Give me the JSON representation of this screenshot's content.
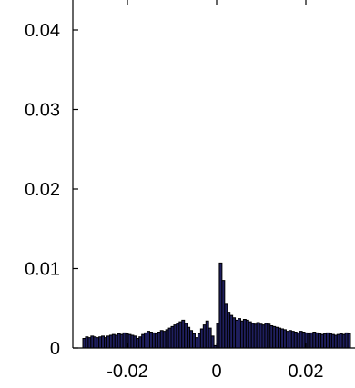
{
  "chart_data": {
    "type": "bar",
    "xlim": [
      -0.03,
      0.03
    ],
    "ylim": [
      0,
      0.042
    ],
    "xticks": [
      -0.02,
      0,
      0.02
    ],
    "xtick_labels": [
      "-0.02",
      "0",
      "0.02"
    ],
    "yticks": [
      0,
      0.01,
      0.02,
      0.03,
      0.04
    ],
    "ytick_labels": [
      "0",
      "0.01",
      "0.02",
      "0.03",
      "0.04"
    ],
    "bar_color": "#1f1f5e",
    "bin_width": 0.0006,
    "x": [
      -0.0297,
      -0.0291,
      -0.0285,
      -0.0279,
      -0.0273,
      -0.0267,
      -0.0261,
      -0.0255,
      -0.0249,
      -0.0243,
      -0.0237,
      -0.0231,
      -0.0225,
      -0.0219,
      -0.0213,
      -0.0207,
      -0.0201,
      -0.0195,
      -0.0189,
      -0.0183,
      -0.0177,
      -0.0171,
      -0.0165,
      -0.0159,
      -0.0153,
      -0.0147,
      -0.0141,
      -0.0135,
      -0.0129,
      -0.0123,
      -0.0117,
      -0.0111,
      -0.0105,
      -0.0099,
      -0.0093,
      -0.0087,
      -0.0081,
      -0.0075,
      -0.0069,
      -0.0063,
      -0.0057,
      -0.0051,
      -0.0045,
      -0.0039,
      -0.0033,
      -0.0027,
      -0.0021,
      -0.0015,
      -0.0009,
      -0.0003,
      0.0003,
      0.0009,
      0.0015,
      0.0021,
      0.0027,
      0.0033,
      0.0039,
      0.0045,
      0.0051,
      0.0057,
      0.0063,
      0.0069,
      0.0075,
      0.0081,
      0.0087,
      0.0093,
      0.0099,
      0.0105,
      0.0111,
      0.0117,
      0.0123,
      0.0129,
      0.0135,
      0.0141,
      0.0147,
      0.0153,
      0.0159,
      0.0165,
      0.0171,
      0.0177,
      0.0183,
      0.0189,
      0.0195,
      0.0201,
      0.0207,
      0.0213,
      0.0219,
      0.0225,
      0.0231,
      0.0237,
      0.0243,
      0.0249,
      0.0255,
      0.0261,
      0.0267,
      0.0273,
      0.0279,
      0.0285,
      0.0291,
      0.0297
    ],
    "values": [
      0.0012,
      0.0014,
      0.0013,
      0.0015,
      0.0014,
      0.0013,
      0.0014,
      0.0015,
      0.0013,
      0.0015,
      0.0016,
      0.0017,
      0.0016,
      0.0018,
      0.0017,
      0.0019,
      0.0018,
      0.0017,
      0.0016,
      0.0015,
      0.0012,
      0.0014,
      0.0017,
      0.0019,
      0.0021,
      0.002,
      0.0019,
      0.0018,
      0.002,
      0.0022,
      0.0021,
      0.0023,
      0.0025,
      0.0027,
      0.0029,
      0.0031,
      0.0033,
      0.0035,
      0.0031,
      0.0026,
      0.0022,
      0.0018,
      0.0013,
      0.0018,
      0.0024,
      0.0029,
      0.0034,
      0.0025,
      0.0015,
      0.0003,
      0.0031,
      0.0107,
      0.0085,
      0.0055,
      0.0045,
      0.0041,
      0.0038,
      0.0035,
      0.0037,
      0.0034,
      0.0036,
      0.0035,
      0.0033,
      0.0031,
      0.003,
      0.0032,
      0.003,
      0.0029,
      0.0031,
      0.003,
      0.0028,
      0.0027,
      0.0026,
      0.0025,
      0.0024,
      0.0023,
      0.0021,
      0.0022,
      0.0021,
      0.002,
      0.0019,
      0.0021,
      0.002,
      0.0019,
      0.0018,
      0.0019,
      0.002,
      0.0019,
      0.0018,
      0.0017,
      0.0018,
      0.0019,
      0.0018,
      0.0017,
      0.0016,
      0.0017,
      0.0018,
      0.0017,
      0.0019,
      0.0018
    ]
  }
}
